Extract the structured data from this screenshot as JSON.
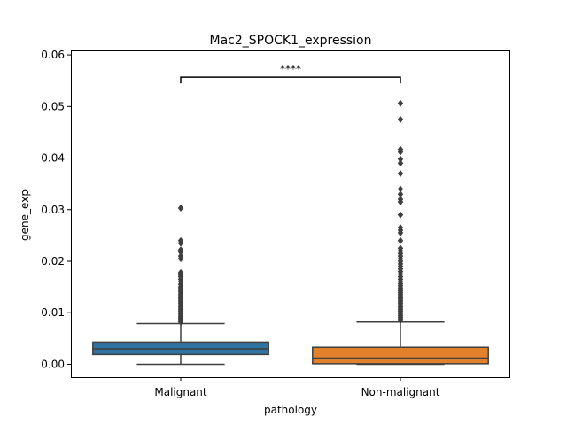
{
  "chart_data": {
    "type": "box",
    "title": "Mac2_SPOCK1_expression",
    "xlabel": "pathology",
    "ylabel": "gene_exp",
    "ylim": [
      -0.0025,
      0.0607
    ],
    "yticks": [
      0.0,
      0.01,
      0.02,
      0.03,
      0.04,
      0.05,
      0.06
    ],
    "ytick_labels": [
      "0.00",
      "0.01",
      "0.02",
      "0.03",
      "0.04",
      "0.05",
      "0.06"
    ],
    "categories": [
      "Malignant",
      "Non-malignant"
    ],
    "colors": [
      "#3274a1",
      "#e1812c"
    ],
    "boxes": [
      {
        "name": "Malignant",
        "whisker_low": 0.0,
        "q1": 0.0019,
        "median": 0.003,
        "q3": 0.0043,
        "whisker_high": 0.0079,
        "outliers": [
          0.0082,
          0.0085,
          0.0088,
          0.009,
          0.0092,
          0.0095,
          0.0098,
          0.01,
          0.0103,
          0.0106,
          0.0109,
          0.0112,
          0.0115,
          0.0118,
          0.0121,
          0.0124,
          0.0127,
          0.013,
          0.0133,
          0.0136,
          0.014,
          0.0143,
          0.0147,
          0.015,
          0.0155,
          0.016,
          0.0165,
          0.017,
          0.0173,
          0.0176,
          0.0178,
          0.0205,
          0.021,
          0.0218,
          0.0222,
          0.0235,
          0.024,
          0.0303
        ]
      },
      {
        "name": "Non-malignant",
        "whisker_low": 0.0,
        "q1": 0.0001,
        "median": 0.0012,
        "q3": 0.0033,
        "whisker_high": 0.0082,
        "outliers": [
          0.0085,
          0.0088,
          0.0091,
          0.0094,
          0.0097,
          0.01,
          0.0103,
          0.0106,
          0.0109,
          0.0112,
          0.0115,
          0.0118,
          0.0121,
          0.0124,
          0.0127,
          0.013,
          0.0133,
          0.0136,
          0.0139,
          0.0142,
          0.0145,
          0.0148,
          0.0152,
          0.0156,
          0.016,
          0.0165,
          0.017,
          0.0175,
          0.018,
          0.0185,
          0.019,
          0.0195,
          0.02,
          0.0205,
          0.021,
          0.0215,
          0.022,
          0.0225,
          0.024,
          0.0255,
          0.026,
          0.0265,
          0.029,
          0.0315,
          0.032,
          0.033,
          0.034,
          0.037,
          0.039,
          0.0398,
          0.0412,
          0.0417,
          0.0475,
          0.0506
        ]
      }
    ],
    "annotation": {
      "text": "****",
      "from": "Malignant",
      "to": "Non-malignant",
      "y": 0.0557,
      "tick_bottom": 0.0545
    },
    "grid": false,
    "legend": "none"
  }
}
